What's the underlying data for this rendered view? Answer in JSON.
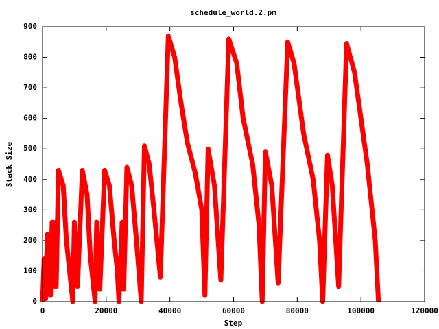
{
  "chart_data": {
    "type": "line",
    "title": "schedule_world.2.pm",
    "x_label": "Step",
    "y_label": "Stack Size",
    "xlim": [
      0,
      120000
    ],
    "xticks": [
      0,
      20000,
      40000,
      60000,
      80000,
      100000,
      120000
    ],
    "ylim": [
      0,
      900
    ],
    "yticks": [
      0,
      100,
      200,
      300,
      400,
      500,
      600,
      700,
      800,
      900
    ],
    "grid": false,
    "series": [
      {
        "name": null,
        "color": "#ff0000",
        "x": [
          0,
          500,
          1000,
          1500,
          2500,
          3000,
          3800,
          4200,
          4300,
          5000,
          6500,
          7500,
          8500,
          9500,
          10000,
          11000,
          12500,
          14000,
          15000,
          16500,
          17000,
          18000,
          19500,
          21000,
          22500,
          23500,
          24000,
          25000,
          25500,
          26500,
          28000,
          29500,
          31000,
          32000,
          33500,
          35000,
          37000,
          39500,
          41500,
          43500,
          45500,
          48000,
          50000,
          51000,
          52000,
          54000,
          56000,
          58500,
          61000,
          63000,
          66000,
          68000,
          69000,
          70000,
          72000,
          74000,
          77000,
          79000,
          82000,
          85000,
          87000,
          88000,
          89500,
          91000,
          93000,
          95500,
          98000,
          100000,
          102000,
          104500,
          105500
        ],
        "values": [
          0,
          140,
          10,
          220,
          20,
          260,
          50,
          260,
          50,
          430,
          380,
          200,
          100,
          0,
          260,
          50,
          430,
          350,
          150,
          0,
          260,
          40,
          430,
          380,
          200,
          100,
          0,
          260,
          40,
          440,
          380,
          200,
          0,
          510,
          450,
          300,
          80,
          870,
          800,
          650,
          520,
          420,
          300,
          20,
          500,
          380,
          70,
          860,
          780,
          600,
          450,
          250,
          0,
          490,
          380,
          60,
          850,
          780,
          550,
          400,
          200,
          0,
          480,
          380,
          50,
          845,
          750,
          600,
          450,
          200,
          0
        ]
      }
    ]
  }
}
